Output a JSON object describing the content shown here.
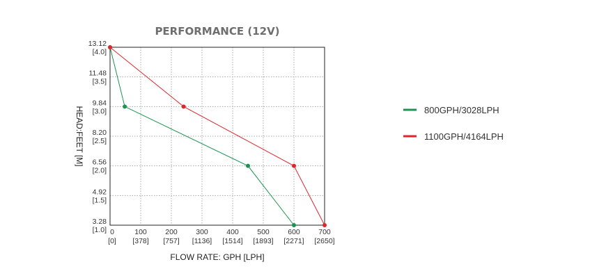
{
  "chart_data": {
    "type": "line",
    "title": "PERFORMANCE (12V)",
    "xlabel": "FLOW RATE: GPH [LPH]",
    "ylabel": "HEAD:FEET [M]",
    "xlim": [
      0,
      700
    ],
    "ylim": [
      3.28,
      13.12
    ],
    "grid": true,
    "legend_position": "right",
    "x_ticks": [
      {
        "value": 0,
        "label": "0",
        "sublabel": "[0]"
      },
      {
        "value": 100,
        "label": "100",
        "sublabel": "[378]"
      },
      {
        "value": 200,
        "label": "200",
        "sublabel": "[757]"
      },
      {
        "value": 300,
        "label": "300",
        "sublabel": "[1136]"
      },
      {
        "value": 400,
        "label": "400",
        "sublabel": "[1514]"
      },
      {
        "value": 500,
        "label": "500",
        "sublabel": "[1893]"
      },
      {
        "value": 600,
        "label": "600",
        "sublabel": "[2271]"
      },
      {
        "value": 700,
        "label": "700",
        "sublabel": "[2650]"
      }
    ],
    "y_ticks": [
      {
        "value": 13.12,
        "label": "13.12",
        "sublabel": "[4.0]"
      },
      {
        "value": 11.48,
        "label": "11.48",
        "sublabel": "[3.5]"
      },
      {
        "value": 9.84,
        "label": "9.84",
        "sublabel": "[3.0]"
      },
      {
        "value": 8.2,
        "label": "8.20",
        "sublabel": "[2.5]"
      },
      {
        "value": 6.56,
        "label": "6.56",
        "sublabel": "[2.0]"
      },
      {
        "value": 4.92,
        "label": "4.92",
        "sublabel": "[1.5]"
      },
      {
        "value": 3.28,
        "label": "3.28",
        "sublabel": "[1.0]"
      }
    ],
    "series": [
      {
        "name": "800GPH/3028LPH",
        "color": "#1a9450",
        "x": [
          0,
          48,
          450,
          600
        ],
        "y": [
          13.12,
          9.84,
          6.56,
          3.28
        ]
      },
      {
        "name": "1100GPH/4164LPH",
        "color": "#e0262b",
        "x": [
          0,
          240,
          600,
          700
        ],
        "y": [
          13.12,
          9.84,
          6.56,
          3.28
        ]
      }
    ]
  }
}
